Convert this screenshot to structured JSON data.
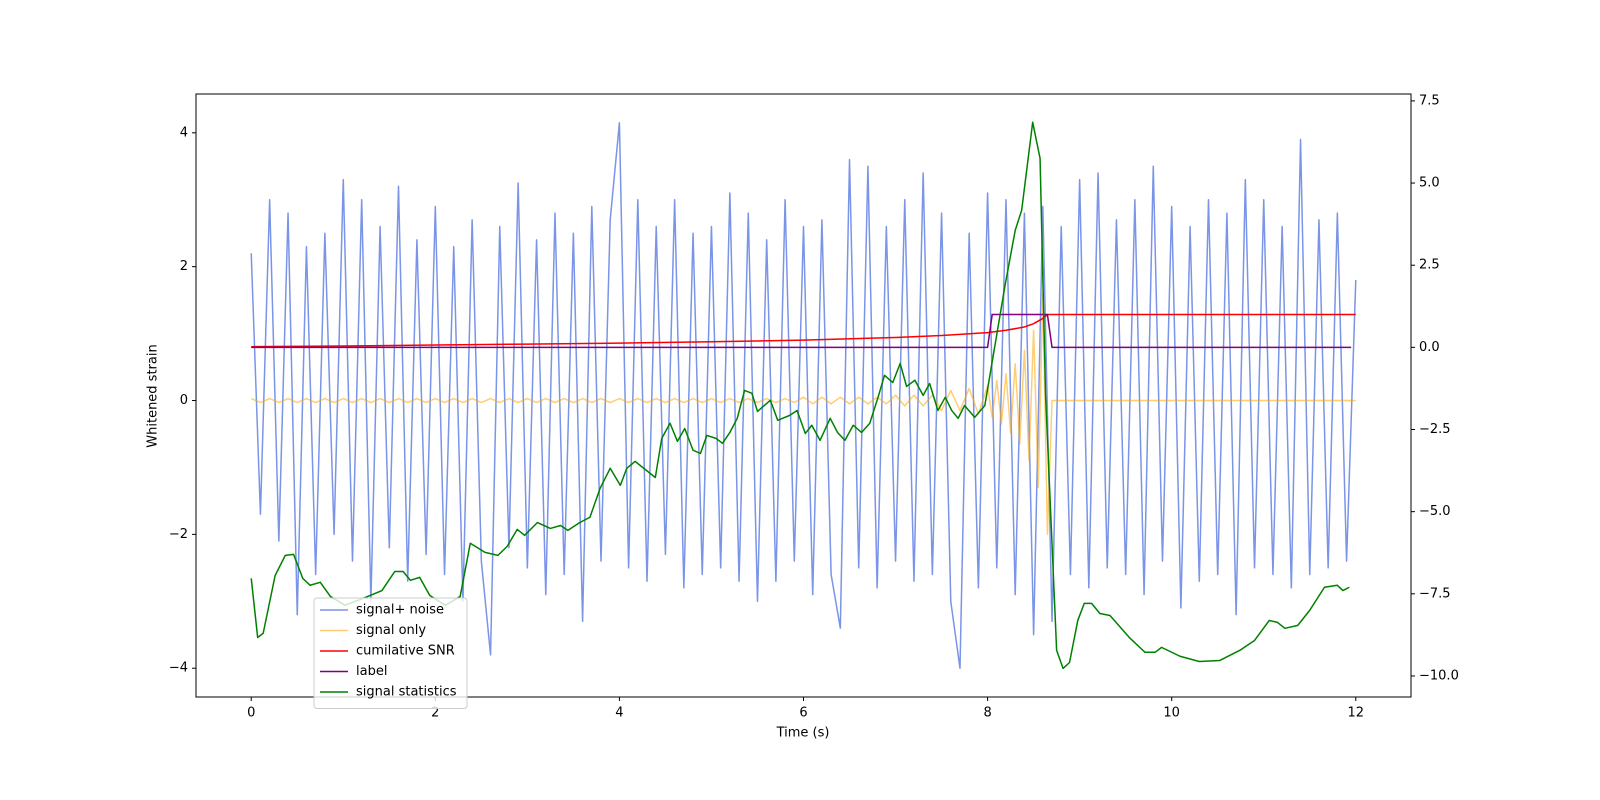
{
  "chart_data": {
    "type": "line",
    "xlabel": "Time (s)",
    "ylabel": "Whitened strain",
    "xlim": [
      -0.6,
      12.6
    ],
    "xticks": [
      0,
      2,
      4,
      6,
      8,
      10,
      12
    ],
    "ylim": [
      -4.43,
      4.58
    ],
    "yticks": [
      {
        "value": -4,
        "label": "−4"
      },
      {
        "value": -2,
        "label": "−2"
      },
      0,
      2,
      4
    ],
    "y2lim": [
      -10.64,
      7.71
    ],
    "y2ticks": [
      {
        "value": -10,
        "label": "−10.0"
      },
      {
        "value": -7.5,
        "label": "−7.5"
      },
      {
        "value": -5,
        "label": "−5.0"
      },
      {
        "value": -2.5,
        "label": "−2.5"
      },
      {
        "value": 0,
        "label": "0.0"
      },
      2.5,
      {
        "value": 5,
        "label": "5.0"
      },
      7.5
    ],
    "series": [
      {
        "name": "signal+ noise",
        "color": "#7a94e8",
        "x": [
          0,
          0.1,
          0.2,
          0.3,
          0.4,
          0.5,
          0.6,
          0.7,
          0.8,
          0.9,
          1,
          1.1,
          1.2,
          1.3,
          1.4,
          1.5,
          1.6,
          1.7,
          1.8,
          1.9,
          2,
          2.1,
          2.2,
          2.3,
          2.4,
          2.5,
          2.6,
          2.7,
          2.8,
          2.9,
          3,
          3.1,
          3.2,
          3.3,
          3.4,
          3.5,
          3.6,
          3.7,
          3.8,
          3.9,
          4,
          4.1,
          4.2,
          4.3,
          4.4,
          4.5,
          4.6,
          4.7,
          4.8,
          4.9,
          5,
          5.1,
          5.2,
          5.3,
          5.4,
          5.5,
          5.6,
          5.7,
          5.8,
          5.9,
          6,
          6.1,
          6.2,
          6.3,
          6.4,
          6.5,
          6.6,
          6.7,
          6.8,
          6.9,
          7,
          7.1,
          7.2,
          7.3,
          7.4,
          7.5,
          7.6,
          7.7,
          7.8,
          7.9,
          8,
          8.1,
          8.2,
          8.3,
          8.4,
          8.5,
          8.6,
          8.7,
          8.8,
          8.9,
          9,
          9.1,
          9.2,
          9.3,
          9.4,
          9.5,
          9.6,
          9.7,
          9.8,
          9.9,
          10,
          10.1,
          10.2,
          10.3,
          10.4,
          10.5,
          10.6,
          10.7,
          10.8,
          10.9,
          11,
          11.1,
          11.2,
          11.3,
          11.4,
          11.5,
          11.6,
          11.7,
          11.8,
          11.9,
          12
        ],
        "values": [
          2.2,
          -1.7,
          3.0,
          -2.1,
          2.8,
          -3.2,
          2.3,
          -2.6,
          2.5,
          -2.0,
          3.3,
          -2.4,
          3.0,
          -3.0,
          2.6,
          -2.2,
          3.2,
          -2.7,
          2.4,
          -2.3,
          2.9,
          -2.6,
          2.3,
          -3.0,
          2.7,
          -2.4,
          -3.8,
          2.6,
          -2.2,
          3.25,
          -2.5,
          2.4,
          -2.9,
          2.8,
          -2.6,
          2.5,
          -3.3,
          2.9,
          -2.4,
          2.7,
          4.15,
          -2.5,
          3.0,
          -2.7,
          2.6,
          -2.3,
          3.0,
          -2.8,
          2.5,
          -2.6,
          2.6,
          -2.5,
          3.1,
          -2.7,
          2.8,
          -3.0,
          2.4,
          -2.7,
          3.0,
          -2.4,
          2.6,
          -2.9,
          2.7,
          -2.6,
          -3.4,
          3.6,
          -2.5,
          3.5,
          -2.8,
          2.6,
          -2.4,
          3.0,
          -2.7,
          3.4,
          -2.6,
          2.8,
          -3.0,
          -4.0,
          2.5,
          -2.8,
          3.1,
          -2.5,
          3.0,
          -2.9,
          2.8,
          -3.5,
          2.9,
          -3.3,
          2.6,
          -2.6,
          3.3,
          -2.8,
          3.4,
          -2.5,
          2.7,
          -2.6,
          3.0,
          -2.9,
          3.5,
          -2.4,
          2.9,
          -3.1,
          2.6,
          -2.7,
          3.0,
          -2.6,
          2.8,
          -3.2,
          3.3,
          -2.5,
          3.0,
          -2.6,
          2.6,
          -2.8,
          3.9,
          -2.6,
          2.7,
          -2.5,
          2.8,
          -2.4,
          1.8
        ]
      },
      {
        "name": "signal only",
        "color": "orange",
        "x": [
          0,
          0.1,
          0.2,
          0.3,
          0.4,
          0.5,
          0.6,
          0.7,
          0.8,
          0.9,
          1,
          1.1,
          1.2,
          1.3,
          1.4,
          1.5,
          1.6,
          1.7,
          1.8,
          1.9,
          2,
          2.1,
          2.2,
          2.3,
          2.4,
          2.5,
          2.6,
          2.7,
          2.8,
          2.9,
          3,
          3.1,
          3.2,
          3.3,
          3.4,
          3.5,
          3.6,
          3.7,
          3.8,
          3.9,
          4,
          4.1,
          4.2,
          4.3,
          4.4,
          4.5,
          4.6,
          4.7,
          4.8,
          4.9,
          5,
          5.1,
          5.2,
          5.3,
          5.4,
          5.5,
          5.6,
          5.7,
          5.8,
          5.9,
          6,
          6.1,
          6.2,
          6.3,
          6.4,
          6.5,
          6.6,
          6.7,
          6.8,
          6.9,
          7,
          7.1,
          7.2,
          7.3,
          7.4,
          7.5,
          7.6,
          7.7,
          7.8,
          7.9,
          8,
          8.05,
          8.1,
          8.15,
          8.2,
          8.25,
          8.3,
          8.35,
          8.4,
          8.45,
          8.5,
          8.55,
          8.6,
          8.65,
          8.7,
          12
        ],
        "values": [
          0.03,
          -0.03,
          0.03,
          -0.03,
          0.03,
          -0.03,
          0.03,
          -0.03,
          0.03,
          -0.03,
          0.03,
          -0.03,
          0.03,
          -0.03,
          0.03,
          -0.03,
          0.03,
          -0.03,
          0.03,
          -0.03,
          0.03,
          -0.03,
          0.03,
          -0.03,
          0.03,
          -0.03,
          0.03,
          -0.03,
          0.03,
          -0.03,
          0.03,
          -0.03,
          0.03,
          -0.03,
          0.03,
          -0.03,
          0.03,
          -0.03,
          0.03,
          -0.03,
          0.03,
          -0.03,
          0.03,
          -0.03,
          0.03,
          -0.03,
          0.03,
          -0.03,
          0.03,
          -0.03,
          0.03,
          -0.03,
          0.03,
          -0.03,
          0.03,
          -0.03,
          0.03,
          -0.03,
          0.03,
          -0.03,
          0.05,
          -0.05,
          0.05,
          -0.05,
          0.05,
          -0.05,
          0.05,
          -0.05,
          0.05,
          -0.05,
          0.08,
          -0.08,
          0.08,
          -0.08,
          0.08,
          -0.15,
          0.15,
          -0.15,
          0.18,
          -0.2,
          0.22,
          -0.25,
          0.3,
          -0.35,
          0.4,
          -0.48,
          0.55,
          -0.65,
          0.75,
          -0.9,
          1.05,
          -1.3,
          1.6,
          -2.0,
          0,
          0
        ]
      },
      {
        "name": "cumilative SNR",
        "color": "red",
        "axis": "y2",
        "x": [
          0,
          1,
          2,
          3,
          4,
          5,
          6,
          7,
          7.5,
          8,
          8.2,
          8.4,
          8.5,
          8.6,
          8.65,
          12
        ],
        "values": [
          0.02,
          0.04,
          0.07,
          0.1,
          0.13,
          0.17,
          0.22,
          0.3,
          0.36,
          0.45,
          0.52,
          0.62,
          0.72,
          0.88,
          1.0,
          1.0
        ]
      },
      {
        "name": "label",
        "color": "purple",
        "axis": "y2",
        "x": [
          0,
          8.0,
          8.05,
          8.65,
          8.7,
          11.95
        ],
        "values": [
          0,
          0,
          1,
          1,
          0,
          0
        ]
      },
      {
        "name": "signal statistics",
        "color": "green",
        "axis": "y2",
        "x": [
          0,
          0.07,
          0.13,
          0.26,
          0.37,
          0.46,
          0.56,
          0.64,
          0.75,
          0.86,
          1.02,
          1.24,
          1.42,
          1.56,
          1.65,
          1.73,
          1.83,
          1.94,
          2.11,
          2.27,
          2.38,
          2.54,
          2.68,
          2.78,
          2.89,
          2.97,
          3.11,
          3.25,
          3.36,
          3.44,
          3.57,
          3.68,
          3.79,
          3.9,
          4.01,
          4.08,
          4.17,
          4.39,
          4.46,
          4.55,
          4.63,
          4.71,
          4.8,
          4.88,
          4.95,
          5.05,
          5.12,
          5.2,
          5.28,
          5.36,
          5.44,
          5.5,
          5.64,
          5.72,
          5.85,
          5.93,
          6.02,
          6.09,
          6.18,
          6.29,
          6.37,
          6.45,
          6.54,
          6.63,
          6.72,
          6.81,
          6.88,
          6.97,
          7.05,
          7.12,
          7.21,
          7.3,
          7.37,
          7.46,
          7.54,
          7.61,
          7.68,
          7.75,
          7.86,
          7.97,
          8.08,
          8.19,
          8.3,
          8.37,
          8.49,
          8.57,
          8.63,
          8.75,
          8.82,
          8.89,
          8.98,
          9.05,
          9.13,
          9.22,
          9.33,
          9.54,
          9.71,
          9.82,
          9.89,
          10.09,
          10.3,
          10.52,
          10.74,
          10.9,
          11.06,
          11.15,
          11.23,
          11.37,
          11.5,
          11.66,
          11.8,
          11.86,
          11.93
        ],
        "values": [
          -7.03,
          -8.83,
          -8.7,
          -6.94,
          -6.33,
          -6.3,
          -7.03,
          -7.24,
          -7.15,
          -7.58,
          -7.85,
          -7.61,
          -7.4,
          -6.82,
          -6.82,
          -7.09,
          -7.0,
          -7.55,
          -7.85,
          -7.58,
          -5.96,
          -6.24,
          -6.33,
          -6.06,
          -5.54,
          -5.72,
          -5.33,
          -5.51,
          -5.42,
          -5.57,
          -5.33,
          -5.17,
          -4.29,
          -3.68,
          -4.2,
          -3.68,
          -3.47,
          -3.96,
          -2.77,
          -2.31,
          -2.86,
          -2.47,
          -3.13,
          -3.23,
          -2.68,
          -2.77,
          -2.92,
          -2.59,
          -2.16,
          -1.31,
          -1.4,
          -1.95,
          -1.61,
          -2.22,
          -2.07,
          -1.92,
          -2.62,
          -2.37,
          -2.83,
          -2.16,
          -2.59,
          -2.83,
          -2.37,
          -2.59,
          -2.31,
          -1.52,
          -0.85,
          -1.07,
          -0.49,
          -1.19,
          -1.0,
          -1.46,
          -1.1,
          -1.92,
          -1.52,
          -1.92,
          -2.16,
          -1.77,
          -2.13,
          -1.77,
          0.06,
          1.89,
          3.56,
          4.17,
          6.85,
          5.75,
          -1.46,
          -9.22,
          -9.77,
          -9.59,
          -8.31,
          -7.79,
          -7.79,
          -8.1,
          -8.16,
          -8.83,
          -9.28,
          -9.28,
          -9.13,
          -9.4,
          -9.56,
          -9.53,
          -9.22,
          -8.92,
          -8.31,
          -8.37,
          -8.55,
          -8.46,
          -8.0,
          -7.3,
          -7.24,
          -7.4,
          -7.3
        ]
      }
    ]
  }
}
